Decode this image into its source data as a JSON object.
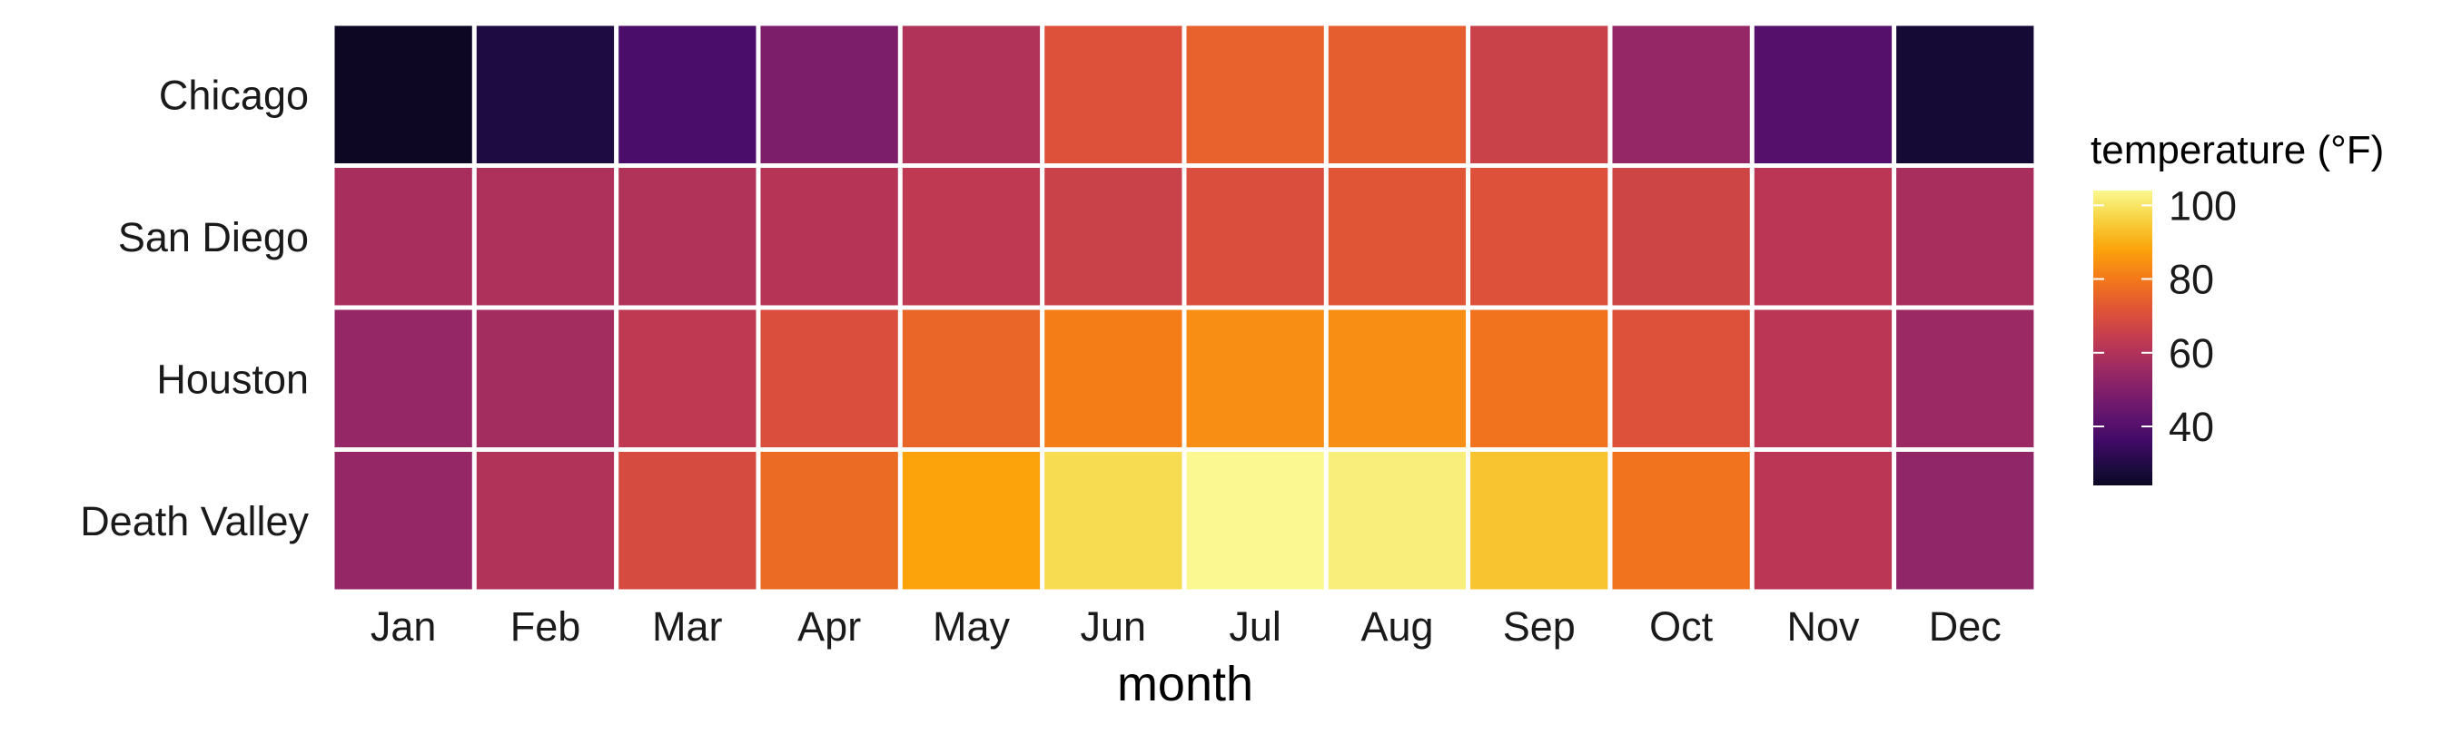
{
  "chart_data": {
    "type": "heatmap",
    "title": "",
    "xlabel": "month",
    "ylabel": "",
    "x_categories": [
      "Jan",
      "Feb",
      "Mar",
      "Apr",
      "May",
      "Jun",
      "Jul",
      "Aug",
      "Sep",
      "Oct",
      "Nov",
      "Dec"
    ],
    "y_categories": [
      "Chicago",
      "San Diego",
      "Houston",
      "Death Valley"
    ],
    "values": [
      [
        24,
        29,
        38,
        49,
        60,
        71,
        75,
        74,
        66,
        54,
        40,
        27
      ],
      [
        58,
        59,
        60,
        61,
        63,
        66,
        70,
        72,
        71,
        67,
        62,
        58
      ],
      [
        54,
        57,
        63,
        70,
        76,
        81,
        84,
        84,
        79,
        71,
        62,
        55
      ],
      [
        54,
        60,
        69,
        77,
        88,
        98,
        104,
        102,
        94,
        79,
        62,
        53
      ]
    ],
    "legend": {
      "title": "temperature (°F)",
      "ticks": [
        40,
        60,
        80,
        100
      ],
      "range": [
        24,
        104
      ],
      "position": "right"
    },
    "colormap": "inferno",
    "grid": false
  }
}
